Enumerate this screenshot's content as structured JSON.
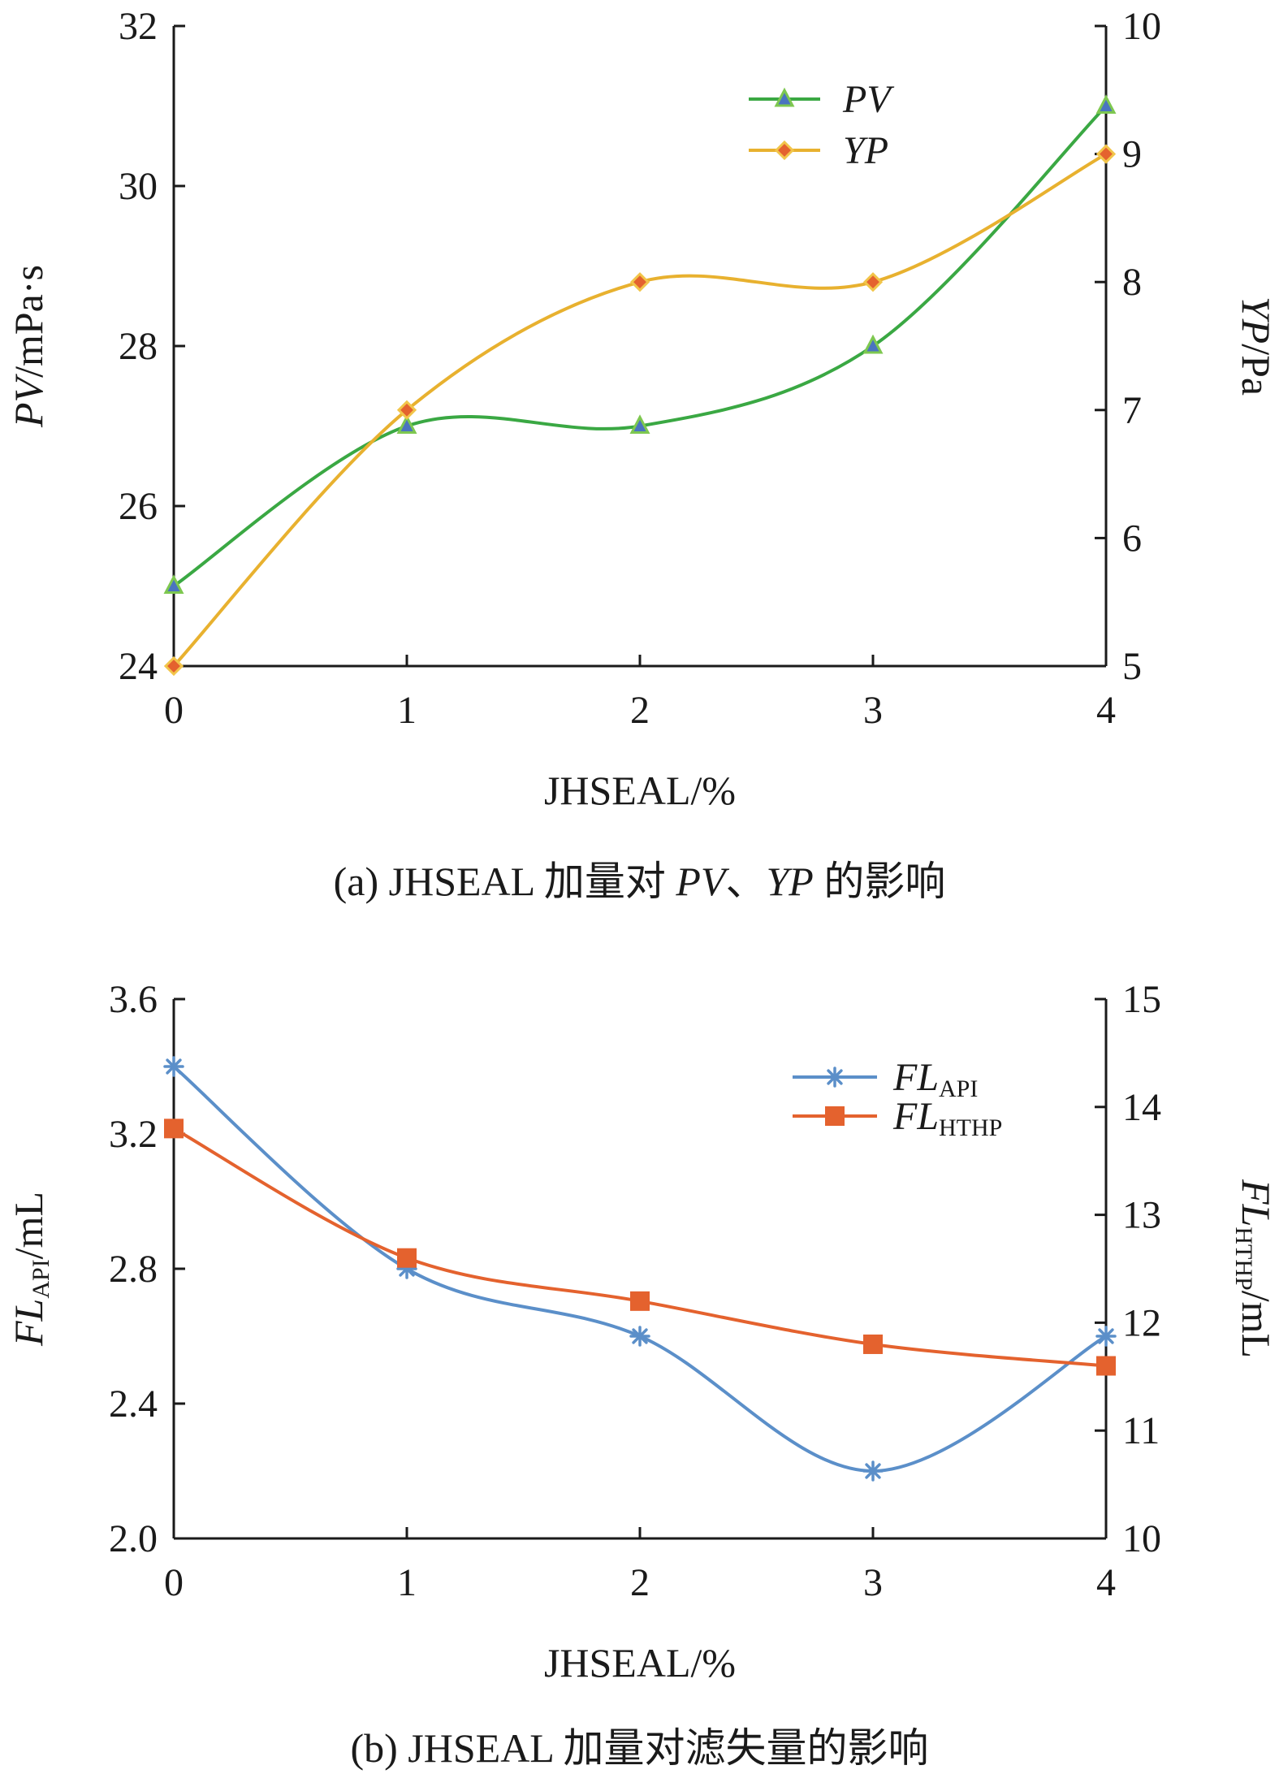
{
  "chart_data": [
    {
      "type": "line",
      "caption_parts": [
        "(a) JHSEAL 加量对 ",
        "PV",
        "、",
        "YP",
        " 的影响"
      ],
      "xlabel": "JHSEAL/%",
      "xlim": [
        0,
        4
      ],
      "xticks": [
        "0",
        "1",
        "2",
        "3",
        "4"
      ],
      "ylabel_left_italic": "PV",
      "ylabel_left_rest": "/mPa·s",
      "ylim_left": [
        24,
        32
      ],
      "yticks_left": [
        "24",
        "26",
        "28",
        "30",
        "32"
      ],
      "ylabel_right_italic": "YP",
      "ylabel_right_rest": "/Pa",
      "ylim_right": [
        5,
        10
      ],
      "yticks_right": [
        "5",
        "6",
        "7",
        "8",
        "9",
        "10"
      ],
      "legend_position": "top-right",
      "x": [
        0,
        1,
        2,
        3,
        4
      ],
      "series": [
        {
          "name": "PV",
          "axis": "left",
          "values": [
            25,
            27,
            27,
            28,
            31
          ],
          "color": "#3aa843",
          "marker": "triangle"
        },
        {
          "name": "YP",
          "axis": "right",
          "values": [
            5,
            7,
            8,
            8,
            9
          ],
          "color": "#e8b12f",
          "marker": "diamond"
        }
      ]
    },
    {
      "type": "line",
      "caption": "(b) JHSEAL 加量对滤失量的影响",
      "xlabel": "JHSEAL/%",
      "xlim": [
        0,
        4
      ],
      "xticks": [
        "0",
        "1",
        "2",
        "3",
        "4"
      ],
      "ylabel_left_italic": "FL",
      "ylabel_left_sub": "API",
      "ylabel_left_rest": "/mL",
      "ylim_left": [
        2.0,
        3.6
      ],
      "yticks_left": [
        "2.0",
        "2.4",
        "2.8",
        "3.2",
        "3.6"
      ],
      "ylabel_right_italic": "FL",
      "ylabel_right_sub": "HTHP",
      "ylabel_right_rest": "/mL",
      "ylim_right": [
        10,
        15
      ],
      "yticks_right": [
        "10",
        "11",
        "12",
        "13",
        "14",
        "15"
      ],
      "legend_position": "top-right",
      "x": [
        0,
        1,
        2,
        3,
        4
      ],
      "series": [
        {
          "name": "FL",
          "name_sub": "API",
          "axis": "left",
          "values": [
            3.4,
            2.8,
            2.6,
            2.2,
            2.6
          ],
          "color": "#5b8fc9",
          "marker": "asterisk"
        },
        {
          "name": "FL",
          "name_sub": "HTHP",
          "axis": "right",
          "values": [
            13.8,
            12.6,
            12.2,
            11.8,
            11.6
          ],
          "color": "#e4622e",
          "marker": "square"
        }
      ]
    }
  ]
}
